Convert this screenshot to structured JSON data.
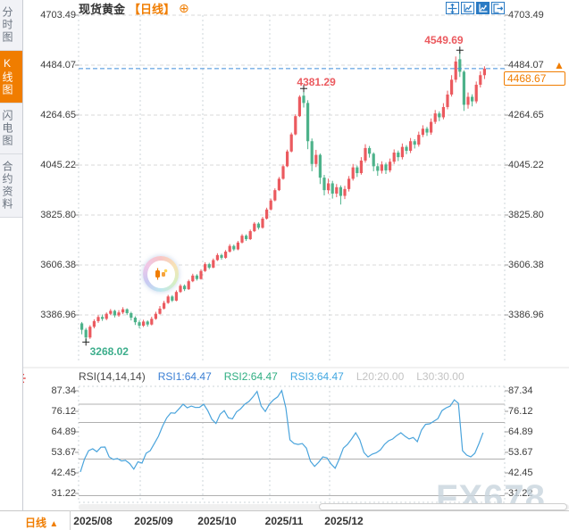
{
  "sidebar": {
    "tabs": [
      {
        "label": "分时图",
        "active": false
      },
      {
        "label": "K线图",
        "active": true
      },
      {
        "label": "闪电图",
        "active": false
      },
      {
        "label": "合约资料",
        "active": false
      }
    ]
  },
  "header": {
    "title": "现货黄金",
    "period_tag": "【日线】",
    "plus_glyph": "⊕",
    "toolbar_icons": [
      "pan-crosshair",
      "axis-zoom",
      "axis-zoom-active",
      "exit-chart"
    ]
  },
  "price_panel": {
    "current_price_label": "4468.67",
    "up_arrow": "▲"
  },
  "rsi_panel": {
    "name": "RSI(14,14,14)",
    "rsi1": "RSI1:64.47",
    "rsi2": "RSI2:64.47",
    "rsi3": "RSI3:64.47",
    "l20": "L20:20.00",
    "l30": "L30:30.00"
  },
  "bottom_bar": {
    "period": "日线",
    "arrow": "▲",
    "dates": [
      "2025/08",
      "2025/09",
      "2025/10",
      "2025/11",
      "2025/12"
    ]
  },
  "watermark": "FX678",
  "colors": {
    "up": "#eb5a5f",
    "down": "#4db28a",
    "accent": "#f07d00",
    "rsi_line": "#4aa4dc",
    "current_line": "#3f8edb",
    "annotation_high": "#eb5a5f",
    "annotation_low": "#3dae8c",
    "grid": "#d9d9d9",
    "vgrid": "#ccd4da",
    "rsi_grid": "#b0b0b0",
    "tick": "#999999"
  },
  "chart_data": {
    "type": "candlestick_with_rsi",
    "symbol": "现货黄金",
    "timeframe": "日线",
    "price_axis_ticks": [
      "4703.49",
      "4484.07",
      "4264.65",
      "4045.22",
      "3825.80",
      "3606.38",
      "3386.96"
    ],
    "price_axis_range": [
      3386.96,
      4703.49
    ],
    "x_axis_labels": [
      "2025/08",
      "2025/09",
      "2025/10",
      "2025/11",
      "2025/12"
    ],
    "current_price": 4468.67,
    "annotations": {
      "high": {
        "label": "4549.69",
        "value": 4549.69
      },
      "local_high": {
        "label": "4381.29",
        "value": 4381.29
      },
      "low": {
        "label": "3268.02",
        "value": 3268.02
      }
    },
    "candles": [
      [
        3350,
        3356,
        3302,
        3322
      ],
      [
        3322,
        3330,
        3268.02,
        3288
      ],
      [
        3288,
        3342,
        3282,
        3335
      ],
      [
        3335,
        3368,
        3328,
        3360
      ],
      [
        3360,
        3386,
        3352,
        3378
      ],
      [
        3378,
        3389,
        3361,
        3370
      ],
      [
        3370,
        3398,
        3364,
        3392
      ],
      [
        3392,
        3413,
        3387,
        3405
      ],
      [
        3405,
        3410,
        3376,
        3385
      ],
      [
        3385,
        3408,
        3379,
        3398
      ],
      [
        3398,
        3421,
        3391,
        3412
      ],
      [
        3412,
        3416,
        3386,
        3395
      ],
      [
        3395,
        3401,
        3363,
        3375
      ],
      [
        3375,
        3381,
        3343,
        3355
      ],
      [
        3355,
        3363,
        3329,
        3340
      ],
      [
        3340,
        3366,
        3334,
        3358
      ],
      [
        3358,
        3363,
        3336,
        3345
      ],
      [
        3345,
        3379,
        3341,
        3370
      ],
      [
        3370,
        3401,
        3366,
        3392
      ],
      [
        3392,
        3426,
        3389,
        3415
      ],
      [
        3415,
        3449,
        3411,
        3440
      ],
      [
        3440,
        3475,
        3436,
        3468
      ],
      [
        3468,
        3474,
        3444,
        3450
      ],
      [
        3450,
        3495,
        3447,
        3488
      ],
      [
        3488,
        3522,
        3484,
        3515
      ],
      [
        3515,
        3521,
        3492,
        3500
      ],
      [
        3500,
        3542,
        3497,
        3535
      ],
      [
        3535,
        3568,
        3531,
        3560
      ],
      [
        3560,
        3566,
        3538,
        3545
      ],
      [
        3545,
        3588,
        3542,
        3580
      ],
      [
        3580,
        3618,
        3576,
        3610
      ],
      [
        3610,
        3616,
        3588,
        3595
      ],
      [
        3595,
        3635,
        3592,
        3628
      ],
      [
        3628,
        3658,
        3624,
        3650
      ],
      [
        3650,
        3656,
        3630,
        3638
      ],
      [
        3638,
        3672,
        3634,
        3665
      ],
      [
        3665,
        3698,
        3661,
        3690
      ],
      [
        3690,
        3696,
        3668,
        3675
      ],
      [
        3675,
        3712,
        3671,
        3705
      ],
      [
        3705,
        3742,
        3701,
        3735
      ],
      [
        3735,
        3741,
        3712,
        3720
      ],
      [
        3720,
        3762,
        3716,
        3755
      ],
      [
        3755,
        3795,
        3751,
        3788
      ],
      [
        3788,
        3794,
        3762,
        3770
      ],
      [
        3770,
        3818,
        3766,
        3810
      ],
      [
        3810,
        3858,
        3806,
        3850
      ],
      [
        3850,
        3898,
        3846,
        3890
      ],
      [
        3890,
        3943,
        3886,
        3935
      ],
      [
        3935,
        3993,
        3931,
        3985
      ],
      [
        3985,
        4048,
        3981,
        4040
      ],
      [
        4040,
        4113,
        4036,
        4105
      ],
      [
        4105,
        4188,
        4101,
        4180
      ],
      [
        4180,
        4268,
        4176,
        4260
      ],
      [
        4260,
        4352,
        4256,
        4345
      ],
      [
        4350,
        4381.29,
        4298,
        4318
      ],
      [
        4318,
        4330,
        4115,
        4150
      ],
      [
        4150,
        4162,
        4018,
        4050
      ],
      [
        4050,
        4112,
        4036,
        4090
      ],
      [
        4090,
        4096,
        3962,
        3990
      ],
      [
        3990,
        4002,
        3912,
        3935
      ],
      [
        3935,
        3986,
        3919,
        3965
      ],
      [
        3965,
        3976,
        3898,
        3920
      ],
      [
        3920,
        3962,
        3904,
        3948
      ],
      [
        3948,
        3956,
        3872,
        3910
      ],
      [
        3910,
        3954,
        3896,
        3940
      ],
      [
        3940,
        3997,
        3929,
        3985
      ],
      [
        3985,
        4050,
        3977,
        4035
      ],
      [
        4035,
        4043,
        3993,
        4010
      ],
      [
        4010,
        4080,
        4003,
        4065
      ],
      [
        4065,
        4137,
        4056,
        4120
      ],
      [
        4120,
        4129,
        4078,
        4095
      ],
      [
        4095,
        4101,
        4018,
        4040
      ],
      [
        4040,
        4053,
        3998,
        4020
      ],
      [
        4020,
        4062,
        4008,
        4048
      ],
      [
        4048,
        4056,
        4006,
        4022
      ],
      [
        4022,
        4074,
        4013,
        4060
      ],
      [
        4060,
        4114,
        4050,
        4100
      ],
      [
        4100,
        4109,
        4063,
        4080
      ],
      [
        4080,
        4140,
        4070,
        4125
      ],
      [
        4125,
        4133,
        4093,
        4108
      ],
      [
        4108,
        4164,
        4098,
        4150
      ],
      [
        4150,
        4159,
        4118,
        4135
      ],
      [
        4135,
        4192,
        4126,
        4178
      ],
      [
        4178,
        4220,
        4168,
        4205
      ],
      [
        4205,
        4213,
        4173,
        4188
      ],
      [
        4188,
        4250,
        4178,
        4235
      ],
      [
        4235,
        4287,
        4226,
        4272
      ],
      [
        4272,
        4281,
        4238,
        4255
      ],
      [
        4255,
        4317,
        4246,
        4300
      ],
      [
        4300,
        4372,
        4290,
        4355
      ],
      [
        4355,
        4440,
        4346,
        4420
      ],
      [
        4420,
        4522,
        4408,
        4500
      ],
      [
        4510,
        4549.69,
        4432,
        4455
      ],
      [
        4455,
        4461,
        4283,
        4310
      ],
      [
        4310,
        4364,
        4293,
        4345
      ],
      [
        4345,
        4356,
        4303,
        4325
      ],
      [
        4325,
        4412,
        4316,
        4398
      ],
      [
        4398,
        4457,
        4386,
        4440
      ],
      [
        4440,
        4479,
        4423,
        4468.67
      ]
    ],
    "rsi": {
      "axis_ticks": [
        "87.34",
        "76.12",
        "64.89",
        "53.67",
        "42.45",
        "31.22"
      ],
      "axis_range": [
        31.22,
        87.34
      ],
      "grid_levels": [
        80,
        70,
        50,
        30
      ],
      "series": [
        43,
        50,
        54.6,
        55.6,
        54,
        56.5,
        56.6,
        51.2,
        49.8,
        50.3,
        49,
        49.3,
        47.5,
        44.5,
        48.5,
        47.8,
        53.2,
        54.6,
        58.5,
        62.5,
        68,
        72.5,
        75.3,
        75.1,
        77.5,
        80,
        78,
        79,
        78.2,
        78.3,
        80,
        76.5,
        71.7,
        69.5,
        74.5,
        76.5,
        72.6,
        72,
        75.8,
        77.5,
        80,
        81.5,
        84,
        87,
        79,
        76,
        80,
        82.4,
        84,
        87.5,
        78,
        60.5,
        58.5,
        58,
        58.5,
        56,
        48.8,
        46,
        48.3,
        51.2,
        50.7,
        47.3,
        45,
        50,
        56,
        58,
        61,
        64.4,
        60.5,
        53.6,
        51.2,
        52.7,
        53.4,
        55,
        58,
        60,
        61,
        62.9,
        64.4,
        62.5,
        61,
        61.8,
        59.5,
        65.8,
        69,
        69.3,
        70.7,
        72.1,
        76.5,
        78,
        79,
        82.4,
        80.5,
        54.6,
        52.2,
        51.2,
        53.2,
        58.5,
        64.47
      ]
    }
  }
}
